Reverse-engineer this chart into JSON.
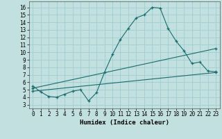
{
  "title": "",
  "xlabel": "Humidex (Indice chaleur)",
  "bg_color": "#c2e0e0",
  "line_color": "#1a6b6b",
  "xlim": [
    -0.5,
    23.5
  ],
  "ylim": [
    2.5,
    16.8
  ],
  "xticks": [
    0,
    1,
    2,
    3,
    4,
    5,
    6,
    7,
    8,
    9,
    10,
    11,
    12,
    13,
    14,
    15,
    16,
    17,
    18,
    19,
    20,
    21,
    22,
    23
  ],
  "yticks": [
    3,
    4,
    5,
    6,
    7,
    8,
    9,
    10,
    11,
    12,
    13,
    14,
    15,
    16
  ],
  "line1_x": [
    0,
    1,
    2,
    3,
    4,
    5,
    6,
    7,
    8,
    9,
    10,
    11,
    12,
    13,
    14,
    15,
    16,
    17,
    18,
    19,
    20,
    21,
    22,
    23
  ],
  "line1_y": [
    5.5,
    4.7,
    4.1,
    4.0,
    4.4,
    4.8,
    5.0,
    3.5,
    4.6,
    7.3,
    9.7,
    11.7,
    13.2,
    14.6,
    15.0,
    16.0,
    15.9,
    13.2,
    11.5,
    10.2,
    8.5,
    8.7,
    7.5,
    7.4
  ],
  "line2_x": [
    0,
    23
  ],
  "line2_y": [
    5.2,
    10.5
  ],
  "line3_x": [
    0,
    23
  ],
  "line3_y": [
    4.8,
    7.3
  ],
  "grid_color": "#9ecece"
}
